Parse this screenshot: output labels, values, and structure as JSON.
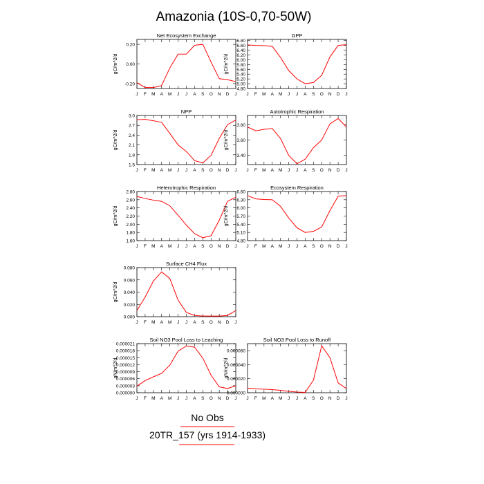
{
  "title": "Amazonia (10S-0,70-50W)",
  "months": [
    "J",
    "F",
    "M",
    "A",
    "M",
    "J",
    "J",
    "A",
    "S",
    "O",
    "N",
    "D",
    "J"
  ],
  "legend": {
    "obs_label": "No Obs",
    "model_label": "20TR_157 (yrs 1914-1933)",
    "model_color": "#ff0000",
    "obs_color": "#ff0000"
  },
  "line_color": "#ff0000",
  "chart_data": [
    {
      "type": "line",
      "title": "Net Ecosystem Exchange",
      "ylabel": "gC/m^2/d",
      "xlabel": "",
      "ylim": [
        -0.25,
        0.25
      ],
      "yticks": [
        -0.2,
        0.0,
        0.2
      ],
      "ytick_labels": [
        "-0.20",
        "0.00",
        "0.20"
      ],
      "values": [
        -0.19,
        -0.24,
        -0.24,
        -0.22,
        -0.04,
        0.1,
        0.1,
        0.19,
        0.2,
        0.02,
        -0.15,
        -0.16,
        -0.18
      ]
    },
    {
      "type": "line",
      "title": "GPP",
      "ylabel": "gC/m^2/d",
      "xlabel": "",
      "ylim": [
        4.8,
        6.85
      ],
      "yticks": [
        4.8,
        5.0,
        5.2,
        5.4,
        5.6,
        5.8,
        6.0,
        6.2,
        6.4,
        6.6,
        6.8
      ],
      "ytick_labels": [
        "4.80",
        "5.00",
        "5.20",
        "5.40",
        "5.60",
        "5.80",
        "6.00",
        "6.20",
        "6.40",
        "6.60",
        "6.80"
      ],
      "values": [
        6.62,
        6.6,
        6.59,
        6.56,
        6.1,
        5.55,
        5.2,
        5.0,
        5.05,
        5.35,
        6.12,
        6.6,
        6.63
      ]
    },
    {
      "type": "line",
      "title": "NPP",
      "ylabel": "gC/m^2/d",
      "xlabel": "",
      "ylim": [
        1.5,
        3.0
      ],
      "yticks": [
        1.5,
        1.8,
        2.1,
        2.4,
        2.7,
        3.0
      ],
      "ytick_labels": [
        "1.5",
        "1.8",
        "2.1",
        "2.4",
        "2.7",
        "3.0"
      ],
      "values": [
        2.87,
        2.88,
        2.84,
        2.79,
        2.45,
        2.1,
        1.9,
        1.62,
        1.55,
        1.78,
        2.3,
        2.72,
        2.86
      ]
    },
    {
      "type": "line",
      "title": "Autotrophic Respiration",
      "ylabel": "gC/m^2/d",
      "xlabel": "",
      "ylim": [
        3.28,
        3.92
      ],
      "yticks": [
        3.4,
        3.6,
        3.8
      ],
      "ytick_labels": [
        "3.40",
        "3.60",
        "3.80"
      ],
      "values": [
        3.77,
        3.72,
        3.74,
        3.75,
        3.62,
        3.4,
        3.29,
        3.35,
        3.5,
        3.6,
        3.81,
        3.88,
        3.77
      ]
    },
    {
      "type": "line",
      "title": "Heterotrophic Respiration",
      "ylabel": "gC/m^2/d",
      "xlabel": "",
      "ylim": [
        1.6,
        2.8
      ],
      "yticks": [
        1.6,
        1.8,
        2.0,
        2.2,
        2.4,
        2.6,
        2.8
      ],
      "ytick_labels": [
        "1.60",
        "1.80",
        "2.00",
        "2.20",
        "2.40",
        "2.60",
        "2.80"
      ],
      "values": [
        2.68,
        2.63,
        2.59,
        2.56,
        2.45,
        2.22,
        1.98,
        1.77,
        1.67,
        1.72,
        2.1,
        2.56,
        2.66
      ]
    },
    {
      "type": "line",
      "title": "Ecosystem Respiration",
      "ylabel": "gC/m^2/d",
      "xlabel": "",
      "ylim": [
        4.8,
        6.6
      ],
      "yticks": [
        4.8,
        5.1,
        5.4,
        5.7,
        6.0,
        6.3,
        6.6
      ],
      "ytick_labels": [
        "4.80",
        "5.10",
        "5.40",
        "5.70",
        "6.00",
        "6.30",
        "6.60"
      ],
      "values": [
        6.45,
        6.33,
        6.31,
        6.3,
        6.06,
        5.63,
        5.27,
        5.1,
        5.14,
        5.3,
        5.9,
        6.43,
        6.45
      ]
    },
    {
      "type": "line",
      "title": "Surface CH4 Flux",
      "ylabel": "gC/m^2/d",
      "xlabel": "",
      "ylim": [
        0.0,
        0.08
      ],
      "yticks": [
        0.0,
        0.02,
        0.04,
        0.06,
        0.08
      ],
      "ytick_labels": [
        "0.000",
        "0.020",
        "0.040",
        "0.060",
        "0.080"
      ],
      "values": [
        0.01,
        0.032,
        0.058,
        0.073,
        0.062,
        0.027,
        0.007,
        0.002,
        0.001,
        0.001,
        0.001,
        0.002,
        0.01
      ]
    },
    {
      "type": "line",
      "title": "Soil NO3 Pool Loss to Leaching",
      "ylabel": "gN/m^2/d",
      "xlabel": "",
      "ylim": [
        0.0,
        2.1e-05
      ],
      "yticks": [
        0.0,
        3e-06,
        6e-06,
        9e-06,
        1.2e-05,
        1.5e-05,
        1.8e-05,
        2.1e-05
      ],
      "ytick_labels": [
        "0.000000",
        "0.000003",
        "0.000006",
        "0.000009",
        "0.000012",
        "0.000015",
        "0.000018",
        "0.000021"
      ],
      "values": [
        2.8e-06,
        5.2e-06,
        6.8e-06,
        8.3e-06,
        1.18e-05,
        1.78e-05,
        2e-05,
        1.95e-05,
        1.48e-05,
        7.5e-06,
        2.5e-06,
        1.8e-06,
        3e-06
      ]
    },
    {
      "type": "line",
      "title": "Soil NO3 Pool Loss to Runoff",
      "ylabel": "gN/m^2/d",
      "xlabel": "",
      "ylim": [
        0.0,
        7e-05
      ],
      "yticks": [
        0.0,
        2e-05,
        4e-05,
        6e-05
      ],
      "ytick_labels": [
        "0.000000",
        "0.000020",
        "0.000040",
        "0.000060"
      ],
      "values": [
        6.5e-06,
        5.5e-06,
        5e-06,
        4.5e-06,
        3.5e-06,
        2e-06,
        1e-06,
        5e-07,
        1.8e-05,
        6.7e-05,
        5e-05,
        1.4e-05,
        6e-06
      ]
    }
  ]
}
